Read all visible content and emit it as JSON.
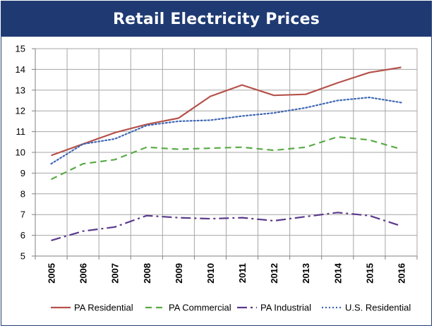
{
  "chart_data": {
    "type": "line",
    "title": "Retail Electricity Prices",
    "xlabel": "",
    "ylabel": "",
    "categories": [
      "2005",
      "2006",
      "2007",
      "2008",
      "2009",
      "2010",
      "2011",
      "2012",
      "2013",
      "2014",
      "2015",
      "2016"
    ],
    "ylim": [
      5,
      15
    ],
    "yticks": [
      "5",
      "6",
      "7",
      "8",
      "9",
      "10",
      "11",
      "12",
      "13",
      "14",
      "15"
    ],
    "grid": true,
    "legend_position": "bottom",
    "series": [
      {
        "name": "PA Residential",
        "color": "#b5514b",
        "style": "solid",
        "values": [
          9.85,
          10.4,
          10.95,
          11.35,
          11.65,
          12.7,
          13.25,
          12.75,
          12.8,
          13.35,
          13.85,
          14.1
        ]
      },
      {
        "name": "PA Commercial",
        "color": "#5aab47",
        "style": "dashed",
        "values": [
          8.7,
          9.45,
          9.65,
          10.25,
          10.15,
          10.2,
          10.25,
          10.1,
          10.25,
          10.75,
          10.6,
          10.15
        ]
      },
      {
        "name": "PA Industrial",
        "color": "#5b3a8c",
        "style": "dashdot",
        "values": [
          5.75,
          6.2,
          6.4,
          6.95,
          6.85,
          6.8,
          6.85,
          6.7,
          6.9,
          7.1,
          6.95,
          6.45
        ]
      },
      {
        "name": "U.S. Residential",
        "color": "#3f68b4",
        "style": "dotted",
        "values": [
          9.45,
          10.4,
          10.65,
          11.3,
          11.5,
          11.55,
          11.75,
          11.9,
          12.15,
          12.5,
          12.65,
          12.4
        ]
      }
    ]
  }
}
